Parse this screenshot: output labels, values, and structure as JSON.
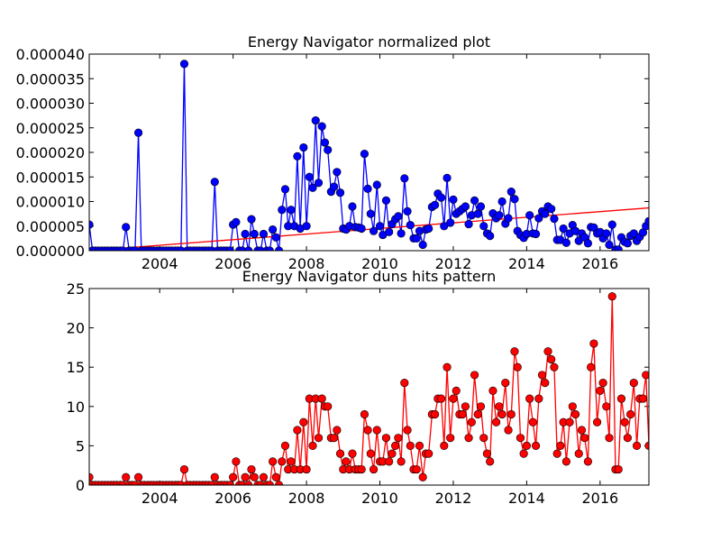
{
  "chart_data": [
    {
      "type": "line",
      "title": "Energy Navigator normalized plot",
      "color": "#0000ff",
      "x": [
        2002.08,
        2002.17,
        2002.25,
        2002.33,
        2002.42,
        2002.5,
        2002.58,
        2002.67,
        2002.75,
        2002.83,
        2002.92,
        2003,
        2003.08,
        2003.17,
        2003.25,
        2003.33,
        2003.42,
        2003.5,
        2003.58,
        2003.67,
        2003.75,
        2003.83,
        2003.92,
        2004,
        2004.08,
        2004.17,
        2004.25,
        2004.33,
        2004.42,
        2004.5,
        2004.58,
        2004.67,
        2004.75,
        2004.83,
        2004.92,
        2005,
        2005.08,
        2005.17,
        2005.25,
        2005.33,
        2005.42,
        2005.5,
        2005.58,
        2005.67,
        2005.75,
        2005.83,
        2005.92,
        2006,
        2006.08,
        2006.17,
        2006.25,
        2006.33,
        2006.42,
        2006.5,
        2006.58,
        2006.67,
        2006.75,
        2006.83,
        2006.92,
        2007,
        2007.08,
        2007.17,
        2007.25,
        2007.33,
        2007.42,
        2007.5,
        2007.58,
        2007.67,
        2007.75,
        2007.83,
        2007.92,
        2008,
        2008.08,
        2008.17,
        2008.25,
        2008.33,
        2008.42,
        2008.5,
        2008.58,
        2008.67,
        2008.75,
        2008.83,
        2008.92,
        2009,
        2009.08,
        2009.17,
        2009.25,
        2009.33,
        2009.42,
        2009.5,
        2009.58,
        2009.67,
        2009.75,
        2009.83,
        2009.92,
        2010,
        2010.08,
        2010.17,
        2010.25,
        2010.33,
        2010.42,
        2010.5,
        2010.58,
        2010.67,
        2010.75,
        2010.83,
        2010.92,
        2011,
        2011.08,
        2011.17,
        2011.25,
        2011.33,
        2011.42,
        2011.5,
        2011.58,
        2011.67,
        2011.75,
        2011.83,
        2011.92,
        2012,
        2012.08,
        2012.17,
        2012.25,
        2012.33,
        2012.42,
        2012.5,
        2012.58,
        2012.67,
        2012.75,
        2012.83,
        2012.92,
        2013,
        2013.08,
        2013.17,
        2013.25,
        2013.33,
        2013.42,
        2013.5,
        2013.58,
        2013.67,
        2013.75,
        2013.83,
        2013.92,
        2014,
        2014.08,
        2014.17,
        2014.25,
        2014.33,
        2014.42,
        2014.5,
        2014.58,
        2014.67,
        2014.75,
        2014.83,
        2014.92,
        2015,
        2015.08,
        2015.17,
        2015.25,
        2015.33,
        2015.42,
        2015.5,
        2015.58,
        2015.67,
        2015.75,
        2015.83,
        2015.92,
        2016,
        2016.08,
        2016.17,
        2016.25,
        2016.33,
        2016.42,
        2016.5,
        2016.58,
        2016.67,
        2016.75,
        2016.83,
        2016.92,
        2017,
        2017.08,
        2017.17,
        2017.25,
        2017.33
      ],
      "values": [
        5.3e-06,
        0,
        0,
        0,
        0,
        0,
        0,
        0,
        0,
        0,
        0,
        0,
        4.8e-06,
        0,
        0,
        0,
        2.4e-05,
        0,
        0,
        0,
        0,
        0,
        0,
        0,
        0,
        0,
        0,
        0,
        0,
        0,
        0,
        3.8e-05,
        0,
        0,
        0,
        0,
        0,
        0,
        0,
        0,
        0,
        1.4e-05,
        0,
        0,
        0,
        0,
        0,
        5.3e-06,
        5.8e-06,
        0,
        0,
        3.4e-06,
        0,
        6.4e-06,
        3.4e-06,
        0,
        0,
        3.4e-06,
        0,
        0,
        4.3e-06,
        2.7e-06,
        0,
        8.3e-06,
        1.25e-05,
        5e-06,
        8.3e-06,
        5e-06,
        1.92e-05,
        4.5e-06,
        2.1e-05,
        5e-06,
        1.5e-05,
        1.28e-05,
        2.65e-05,
        1.38e-05,
        2.53e-05,
        2.2e-05,
        2.05e-05,
        1.2e-05,
        1.3e-05,
        1.6e-05,
        1.18e-05,
        4.5e-06,
        4.3e-06,
        5e-06,
        9e-06,
        4.8e-06,
        4.7e-06,
        4.5e-06,
        1.97e-05,
        1.26e-05,
        7.5e-06,
        4e-06,
        1.34e-05,
        5e-06,
        3.2e-06,
        1.02e-05,
        3.8e-06,
        5.4e-06,
        6.4e-06,
        7e-06,
        3.5e-06,
        1.47e-05,
        8e-06,
        5.2e-06,
        2.5e-06,
        2.5e-06,
        4e-06,
        1.2e-06,
        4.3e-06,
        4.5e-06,
        8.9e-06,
        9.3e-06,
        1.16e-05,
        1.08e-05,
        5e-06,
        1.48e-05,
        5.7e-06,
        1.04e-05,
        7.5e-06,
        8e-06,
        8.5e-06,
        9e-06,
        5.4e-06,
        7.2e-06,
        1.02e-05,
        7.5e-06,
        9e-06,
        5e-06,
        3.5e-06,
        3e-06,
        7.6e-06,
        6.6e-06,
        7.2e-06,
        1e-05,
        5.5e-06,
        6.6e-06,
        1.2e-05,
        1.05e-05,
        4e-06,
        3.2e-06,
        2.6e-06,
        3.4e-06,
        7.2e-06,
        3.5e-06,
        3.4e-06,
        6.6e-06,
        8e-06,
        7.5e-06,
        9e-06,
        8.5e-06,
        6.5e-06,
        2.2e-06,
        2.2e-06,
        4.5e-06,
        1.6e-06,
        3.5e-06,
        5.2e-06,
        4e-06,
        2e-06,
        3.5e-06,
        2.7e-06,
        1.5e-06,
        4.8e-06,
        4.7e-06,
        3.5e-06,
        3.8e-06,
        2.5e-06,
        3.5e-06,
        1.2e-06,
        5.3e-06,
        2e-07,
        2e-07,
        2.7e-06,
        1.8e-06,
        1.5e-06,
        3e-06,
        3.5e-06,
        2e-06,
        2.8e-06,
        3.7e-06,
        5e-06,
        6e-06
      ],
      "trend": {
        "color": "#ff0000",
        "x": [
          2002.08,
          2017.33
        ],
        "values": [
          0,
          8.7e-06
        ]
      },
      "xlim": [
        2002.08,
        2017.33
      ],
      "xticks": [
        2004,
        2006,
        2008,
        2010,
        2012,
        2014,
        2016
      ],
      "ylim": [
        0,
        4e-05
      ],
      "yticks": [
        {
          "value": 0,
          "label": "0.000000"
        },
        {
          "value": 5e-06,
          "label": "0.000005"
        },
        {
          "value": 1e-05,
          "label": "0.000010"
        },
        {
          "value": 1.5e-05,
          "label": "0.000015"
        },
        {
          "value": 2e-05,
          "label": "0.000020"
        },
        {
          "value": 2.5e-05,
          "label": "0.000025"
        },
        {
          "value": 3e-05,
          "label": "0.000030"
        },
        {
          "value": 3.5e-05,
          "label": "0.000035"
        },
        {
          "value": 4e-05,
          "label": "0.000040"
        }
      ]
    },
    {
      "type": "line",
      "title": "Energy Navigator duns hits pattern",
      "color": "#ff0000",
      "x": [
        2002.08,
        2002.17,
        2002.25,
        2002.33,
        2002.42,
        2002.5,
        2002.58,
        2002.67,
        2002.75,
        2002.83,
        2002.92,
        2003,
        2003.08,
        2003.17,
        2003.25,
        2003.33,
        2003.42,
        2003.5,
        2003.58,
        2003.67,
        2003.75,
        2003.83,
        2003.92,
        2004,
        2004.08,
        2004.17,
        2004.25,
        2004.33,
        2004.42,
        2004.5,
        2004.58,
        2004.67,
        2004.75,
        2004.83,
        2004.92,
        2005,
        2005.08,
        2005.17,
        2005.25,
        2005.33,
        2005.42,
        2005.5,
        2005.58,
        2005.67,
        2005.75,
        2005.83,
        2005.92,
        2006,
        2006.08,
        2006.17,
        2006.25,
        2006.33,
        2006.42,
        2006.5,
        2006.58,
        2006.67,
        2006.75,
        2006.83,
        2006.92,
        2007,
        2007.08,
        2007.17,
        2007.25,
        2007.33,
        2007.42,
        2007.5,
        2007.58,
        2007.67,
        2007.75,
        2007.83,
        2007.92,
        2008,
        2008.08,
        2008.17,
        2008.25,
        2008.33,
        2008.42,
        2008.5,
        2008.58,
        2008.67,
        2008.75,
        2008.83,
        2008.92,
        2009,
        2009.08,
        2009.17,
        2009.25,
        2009.33,
        2009.42,
        2009.5,
        2009.58,
        2009.67,
        2009.75,
        2009.83,
        2009.92,
        2010,
        2010.08,
        2010.17,
        2010.25,
        2010.33,
        2010.42,
        2010.5,
        2010.58,
        2010.67,
        2010.75,
        2010.83,
        2010.92,
        2011,
        2011.08,
        2011.17,
        2011.25,
        2011.33,
        2011.42,
        2011.5,
        2011.58,
        2011.67,
        2011.75,
        2011.83,
        2011.92,
        2012,
        2012.08,
        2012.17,
        2012.25,
        2012.33,
        2012.42,
        2012.5,
        2012.58,
        2012.67,
        2012.75,
        2012.83,
        2012.92,
        2013,
        2013.08,
        2013.17,
        2013.25,
        2013.33,
        2013.42,
        2013.5,
        2013.58,
        2013.67,
        2013.75,
        2013.83,
        2013.92,
        2014,
        2014.08,
        2014.17,
        2014.25,
        2014.33,
        2014.42,
        2014.5,
        2014.58,
        2014.67,
        2014.75,
        2014.83,
        2014.92,
        2015,
        2015.08,
        2015.17,
        2015.25,
        2015.33,
        2015.42,
        2015.5,
        2015.58,
        2015.67,
        2015.75,
        2015.83,
        2015.92,
        2016,
        2016.08,
        2016.17,
        2016.25,
        2016.33,
        2016.42,
        2016.5,
        2016.58,
        2016.67,
        2016.75,
        2016.83,
        2016.92,
        2017,
        2017.08,
        2017.17,
        2017.25,
        2017.33
      ],
      "values": [
        1,
        0,
        0,
        0,
        0,
        0,
        0,
        0,
        0,
        0,
        0,
        0,
        1,
        0,
        0,
        0,
        1,
        0,
        0,
        0,
        0,
        0,
        0,
        0,
        0,
        0,
        0,
        0,
        0,
        0,
        0,
        2,
        0,
        0,
        0,
        0,
        0,
        0,
        0,
        0,
        0,
        1,
        0,
        0,
        0,
        0,
        0,
        1,
        3,
        0,
        0,
        1,
        0,
        2,
        1,
        0,
        0,
        1,
        0,
        0,
        3,
        1,
        0,
        3,
        5,
        2,
        3,
        2,
        7,
        2,
        8,
        2,
        11,
        5,
        11,
        6,
        11,
        10,
        10,
        6,
        6,
        7,
        4,
        2,
        3,
        2,
        4,
        2,
        2,
        2,
        9,
        7,
        4,
        2,
        7,
        3,
        3,
        6,
        3,
        4,
        5,
        6,
        3,
        13,
        7,
        5,
        2,
        2,
        5,
        1,
        4,
        4,
        9,
        9,
        11,
        11,
        5,
        15,
        6,
        11,
        12,
        9,
        9,
        10,
        6,
        8,
        14,
        9,
        10,
        6,
        4,
        3,
        12,
        8,
        10,
        9,
        13,
        7,
        9,
        17,
        15,
        6,
        4,
        5,
        11,
        8,
        5,
        11,
        14,
        13,
        17,
        16,
        15,
        4,
        5,
        8,
        3,
        8,
        10,
        9,
        4,
        7,
        6,
        3,
        15,
        18,
        8,
        12,
        13,
        10,
        6,
        24,
        2,
        2,
        11,
        8,
        6,
        9,
        13,
        5,
        11,
        11,
        14,
        5
      ],
      "xlim": [
        2002.08,
        2017.33
      ],
      "xticks": [
        2004,
        2006,
        2008,
        2010,
        2012,
        2014,
        2016
      ],
      "ylim": [
        0,
        25
      ],
      "yticks": [
        0,
        5,
        10,
        15,
        20,
        25
      ]
    }
  ]
}
